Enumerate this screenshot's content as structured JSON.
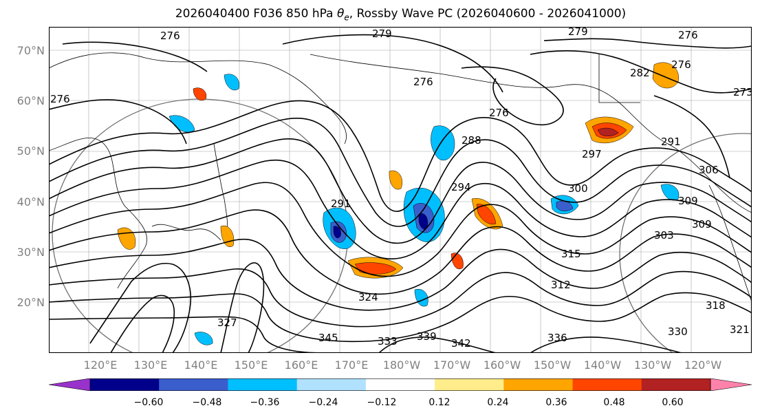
{
  "title_parts": {
    "prefix": "2026040400 F036 850 hPa ",
    "theta": "θ",
    "sub": "e",
    "suffix": ", Rossby Wave PC (2026040600 - 2026041000)"
  },
  "lat_labels": [
    "70°N",
    "60°N",
    "50°N",
    "40°N",
    "30°N",
    "20°N"
  ],
  "lon_labels": [
    "120°E",
    "130°E",
    "140°E",
    "150°E",
    "160°E",
    "170°E",
    "180°W",
    "170°W",
    "160°W",
    "150°W",
    "140°W",
    "130°W",
    "120°W"
  ],
  "contour_labels": [
    "279",
    "279",
    "276",
    "276",
    "276",
    "276",
    "282",
    "276",
    "273",
    "276",
    "288",
    "291",
    "294",
    "291",
    "297",
    "300",
    "303",
    "306",
    "309",
    "309",
    "312",
    "315",
    "318",
    "321",
    "324",
    "327",
    "330",
    "333",
    "336",
    "339",
    "342",
    "345"
  ],
  "colorbar": {
    "ticks": [
      "−0.60",
      "−0.48",
      "−0.36",
      "−0.24",
      "−0.12",
      "0.12",
      "0.24",
      "0.36",
      "0.48",
      "0.60"
    ],
    "colors": [
      "#9932CC",
      "#00008B",
      "#3A5FCD",
      "#00BFFF",
      "#B0E2FF",
      "#FFFFFF",
      "#FFEC8B",
      "#FFA500",
      "#FF4500",
      "#B22222",
      "#FF82AB"
    ]
  }
}
